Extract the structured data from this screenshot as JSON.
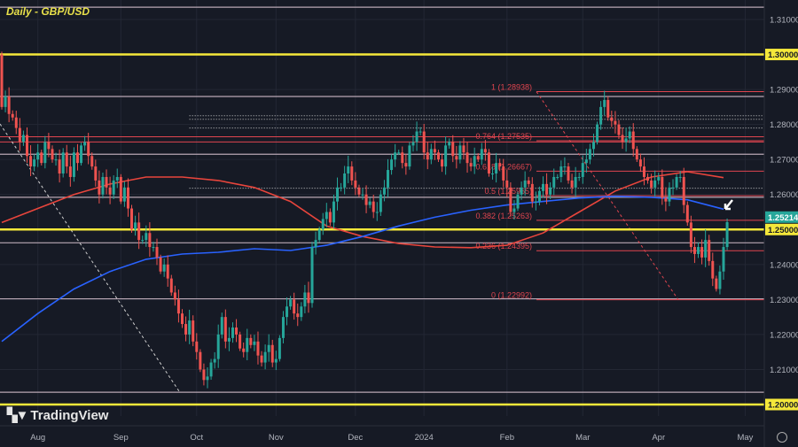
{
  "title": "Daily - GBP/USD",
  "brand": "TradingView",
  "colors": {
    "background": "#161a25",
    "up": "#26a69a",
    "down": "#ef5350",
    "key_level": "#f5e83a",
    "fib": "#e0454f",
    "ma_fast": "#e8453c",
    "ma_slow": "#2962ff",
    "grid": "#232734",
    "level": "#b9a7b4",
    "last_price": "#26a69a"
  },
  "chart_data": {
    "type": "candlestick",
    "title": "Daily - GBP/USD",
    "ylim": [
      1.2,
      1.31
    ],
    "y_ticks": [
      "1.31000",
      "1.30000",
      "1.29000",
      "1.28000",
      "1.27000",
      "1.26000",
      "1.25000",
      "1.24000",
      "1.23000",
      "1.22000",
      "1.21000",
      "1.20000"
    ],
    "x_ticks": [
      {
        "label": "Aug",
        "index": 10
      },
      {
        "label": "Sep",
        "index": 33
      },
      {
        "label": "Oct",
        "index": 54
      },
      {
        "label": "Nov",
        "index": 76
      },
      {
        "label": "Dec",
        "index": 98
      },
      {
        "label": "2024",
        "index": 117
      },
      {
        "label": "Feb",
        "index": 140
      },
      {
        "label": "Mar",
        "index": 161
      },
      {
        "label": "Apr",
        "index": 182
      },
      {
        "label": "May",
        "index": 206
      }
    ],
    "first_open": 1.3,
    "closes": [
      1.285,
      1.288,
      1.283,
      1.282,
      1.279,
      1.275,
      1.277,
      1.271,
      1.268,
      1.27,
      1.272,
      1.269,
      1.275,
      1.273,
      1.27,
      1.27,
      1.266,
      1.272,
      1.268,
      1.265,
      1.272,
      1.269,
      1.274,
      1.275,
      1.271,
      1.268,
      1.264,
      1.26,
      1.265,
      1.262,
      1.26,
      1.264,
      1.265,
      1.258,
      1.262,
      1.256,
      1.25,
      1.252,
      1.247,
      1.247,
      1.249,
      1.245,
      1.245,
      1.242,
      1.238,
      1.24,
      1.236,
      1.232,
      1.23,
      1.226,
      1.223,
      1.22,
      1.224,
      1.218,
      1.215,
      1.21,
      1.207,
      1.208,
      1.212,
      1.213,
      1.22,
      1.225,
      1.218,
      1.219,
      1.222,
      1.22,
      1.216,
      1.215,
      1.219,
      1.217,
      1.218,
      1.214,
      1.212,
      1.215,
      1.217,
      1.212,
      1.213,
      1.219,
      1.225,
      1.228,
      1.23,
      1.226,
      1.225,
      1.228,
      1.232,
      1.229,
      1.245,
      1.247,
      1.25,
      1.253,
      1.255,
      1.252,
      1.258,
      1.262,
      1.262,
      1.266,
      1.268,
      1.264,
      1.262,
      1.26,
      1.26,
      1.257,
      1.258,
      1.255,
      1.255,
      1.26,
      1.262,
      1.267,
      1.27,
      1.272,
      1.272,
      1.269,
      1.268,
      1.274,
      1.275,
      1.278,
      1.278,
      1.272,
      1.27,
      1.273,
      1.272,
      1.27,
      1.268,
      1.274,
      1.275,
      1.271,
      1.27,
      1.274,
      1.272,
      1.269,
      1.268,
      1.271,
      1.27,
      1.273,
      1.272,
      1.266,
      1.266,
      1.269,
      1.268,
      1.264,
      1.262,
      1.255,
      1.256,
      1.26,
      1.262,
      1.264,
      1.263,
      1.258,
      1.258,
      1.261,
      1.263,
      1.26,
      1.262,
      1.265,
      1.265,
      1.268,
      1.268,
      1.264,
      1.262,
      1.265,
      1.265,
      1.269,
      1.27,
      1.273,
      1.275,
      1.28,
      1.285,
      1.287,
      1.282,
      1.281,
      1.28,
      1.277,
      1.275,
      1.276,
      1.278,
      1.273,
      1.27,
      1.268,
      1.265,
      1.264,
      1.262,
      1.264,
      1.265,
      1.259,
      1.258,
      1.262,
      1.262,
      1.265,
      1.265,
      1.257,
      1.252,
      1.245,
      1.243,
      1.245,
      1.242,
      1.247,
      1.241,
      1.236,
      1.233,
      1.238,
      1.245,
      1.2521
    ],
    "moving_averages": [
      {
        "color": "#e8453c",
        "values": [
          1.252,
          1.256,
          1.26,
          1.263,
          1.265,
          1.265,
          1.264,
          1.262,
          1.258,
          1.251,
          1.248,
          1.246,
          1.245,
          1.2448,
          1.2455,
          1.249,
          1.255,
          1.261,
          1.265,
          1.2665,
          1.2648
        ]
      },
      {
        "color": "#2962ff",
        "values": [
          1.218,
          1.226,
          1.233,
          1.238,
          1.2415,
          1.243,
          1.2435,
          1.2445,
          1.244,
          1.2455,
          1.248,
          1.251,
          1.2535,
          1.2555,
          1.257,
          1.258,
          1.259,
          1.2595,
          1.2592,
          1.2585,
          1.2558
        ]
      }
    ],
    "key_levels": [
      {
        "price": 1.3,
        "label": "1.30000"
      },
      {
        "price": 1.25,
        "label": "1.25000"
      },
      {
        "price": 1.2,
        "label": "1.20000"
      }
    ],
    "last_price": {
      "price": 1.25214,
      "label": "1.25214"
    },
    "levels": [
      1.3135,
      1.288,
      1.2715,
      1.2592,
      1.2462,
      1.2302,
      1.2035
    ],
    "dotted_levels": [
      1.2825,
      1.2815,
      1.279,
      1.2618
    ],
    "red_levels": [
      1.2765,
      1.275
    ],
    "fibonacci": [
      {
        "ratio": "1",
        "price": 1.28938,
        "label": "1 (1.28938)"
      },
      {
        "ratio": "0.764",
        "price": 1.27535,
        "label": "0.764 (1.27535)"
      },
      {
        "ratio": "0.618",
        "price": 1.26667,
        "label": "0.618 (1.26667)"
      },
      {
        "ratio": "0.5",
        "price": 1.25965,
        "label": "0.5 (1.25965)"
      },
      {
        "ratio": "0.382",
        "price": 1.25263,
        "label": "0.382 (1.25263)"
      },
      {
        "ratio": "0.236",
        "price": 1.24395,
        "label": "0.236 (1.24395)"
      },
      {
        "ratio": "0",
        "price": 1.22992,
        "label": "0 (1.22992)"
      }
    ]
  }
}
